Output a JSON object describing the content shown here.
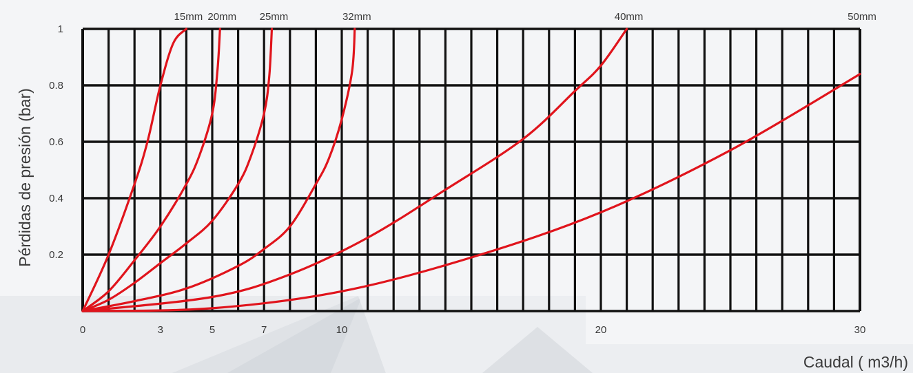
{
  "chart_data": {
    "type": "line",
    "title": "",
    "xlabel": "Caudal ( m3/h)",
    "ylabel": "Pérdidas de presión  (bar)",
    "xlim": [
      0,
      30
    ],
    "ylim": [
      0,
      1
    ],
    "x_ticks": [
      0,
      3,
      5,
      7,
      10,
      20,
      30
    ],
    "y_ticks": [
      0.2,
      0.4,
      0.6,
      0.8,
      1
    ],
    "grid": true,
    "legend": "series names printed above the top edge of the plot",
    "colors": {
      "line": "#e0141c",
      "grid": "#111111",
      "background": "#f4f5f7"
    },
    "series": [
      {
        "name": "15mm",
        "points": [
          [
            0,
            0
          ],
          [
            1,
            0.2
          ],
          [
            2,
            0.45
          ],
          [
            2.5,
            0.6
          ],
          [
            3,
            0.8
          ],
          [
            3.5,
            0.95
          ],
          [
            4,
            1
          ]
        ]
      },
      {
        "name": "20mm",
        "points": [
          [
            0,
            0
          ],
          [
            1,
            0.07
          ],
          [
            2,
            0.18
          ],
          [
            3,
            0.3
          ],
          [
            4,
            0.45
          ],
          [
            4.5,
            0.55
          ],
          [
            5,
            0.7
          ],
          [
            5.2,
            0.85
          ],
          [
            5.3,
            1
          ]
        ]
      },
      {
        "name": "25mm",
        "points": [
          [
            0,
            0
          ],
          [
            1,
            0.04
          ],
          [
            2,
            0.1
          ],
          [
            3,
            0.17
          ],
          [
            4,
            0.24
          ],
          [
            5,
            0.32
          ],
          [
            6,
            0.45
          ],
          [
            6.5,
            0.55
          ],
          [
            7,
            0.7
          ],
          [
            7.2,
            0.83
          ],
          [
            7.3,
            1
          ]
        ]
      },
      {
        "name": "32mm",
        "points": [
          [
            0,
            0
          ],
          [
            2,
            0.035
          ],
          [
            4,
            0.08
          ],
          [
            6,
            0.16
          ],
          [
            7,
            0.22
          ],
          [
            8,
            0.3
          ],
          [
            9,
            0.45
          ],
          [
            9.5,
            0.54
          ],
          [
            10,
            0.68
          ],
          [
            10.4,
            0.85
          ],
          [
            10.5,
            1
          ]
        ]
      },
      {
        "name": "40mm",
        "points": [
          [
            0,
            0
          ],
          [
            5,
            0.05
          ],
          [
            8,
            0.13
          ],
          [
            11,
            0.26
          ],
          [
            14,
            0.43
          ],
          [
            17,
            0.61
          ],
          [
            19,
            0.78
          ],
          [
            20,
            0.87
          ],
          [
            21,
            1
          ]
        ]
      },
      {
        "name": "50mm",
        "points": [
          [
            0,
            0
          ],
          [
            5,
            0.01
          ],
          [
            10,
            0.07
          ],
          [
            15,
            0.19
          ],
          [
            20,
            0.35
          ],
          [
            25,
            0.57
          ],
          [
            30,
            0.84
          ]
        ]
      }
    ]
  }
}
